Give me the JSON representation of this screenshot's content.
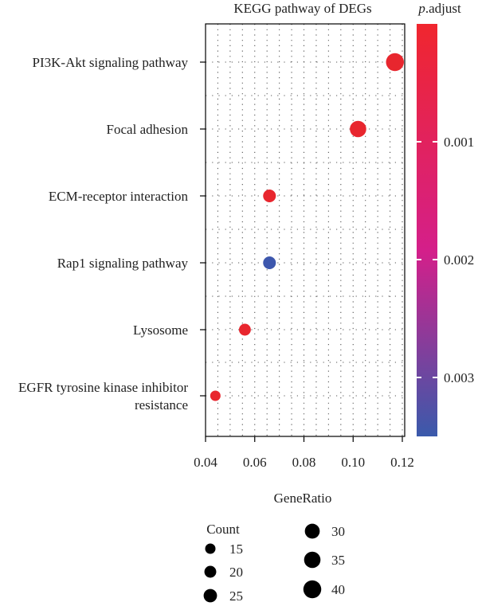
{
  "chart_data": {
    "type": "scatter",
    "title": "KEGG pathway of DEGs",
    "xlabel": "GeneRatio",
    "ylabel": "",
    "xlim": [
      0.04,
      0.12
    ],
    "x_ticks": [
      "0.04",
      "0.06",
      "0.08",
      "0.10",
      "0.12"
    ],
    "grid": true,
    "categories": [
      "PI3K-Akt signaling pathway",
      "Focal adhesion",
      "ECM-receptor interaction",
      "Rap1 signaling pathway",
      "Lysosome",
      "EGFR tyrosine kinase inhibitor resistance"
    ],
    "points": [
      {
        "category": "PI3K-Akt signaling pathway",
        "gene_ratio": 0.117,
        "count": 40,
        "p_adjust": 1e-05,
        "color": "#e8262e"
      },
      {
        "category": "Focal adhesion",
        "gene_ratio": 0.102,
        "count": 35,
        "p_adjust": 1e-05,
        "color": "#e8262e"
      },
      {
        "category": "ECM-receptor interaction",
        "gene_ratio": 0.066,
        "count": 23,
        "p_adjust": 1e-05,
        "color": "#e8262e"
      },
      {
        "category": "Rap1 signaling pathway",
        "gene_ratio": 0.066,
        "count": 23,
        "p_adjust": 0.0033,
        "color": "#3d57ad"
      },
      {
        "category": "Lysosome",
        "gene_ratio": 0.056,
        "count": 20,
        "p_adjust": 1e-05,
        "color": "#e8262e"
      },
      {
        "category": "EGFR tyrosine kinase inhibitor resistance",
        "gene_ratio": 0.044,
        "count": 15,
        "p_adjust": 1e-05,
        "color": "#e8262e"
      }
    ],
    "colorbar": {
      "title_italic": "p",
      "title_rest": ".adjust",
      "ticks": [
        {
          "value": 0.001,
          "label": "0.001"
        },
        {
          "value": 0.002,
          "label": "0.002"
        },
        {
          "value": 0.003,
          "label": "0.003"
        }
      ],
      "range": [
        0.0,
        0.0035
      ],
      "low_color": "#f0262e",
      "mid_color": "#d41f8a",
      "high_color": "#3a5aab"
    },
    "size_legend": {
      "title": "Count",
      "entries": [
        {
          "count": 15,
          "label": "15"
        },
        {
          "count": 20,
          "label": "20"
        },
        {
          "count": 25,
          "label": "25"
        },
        {
          "count": 30,
          "label": "30"
        },
        {
          "count": 35,
          "label": "35"
        },
        {
          "count": 40,
          "label": "40"
        }
      ],
      "color": "#000000"
    }
  }
}
